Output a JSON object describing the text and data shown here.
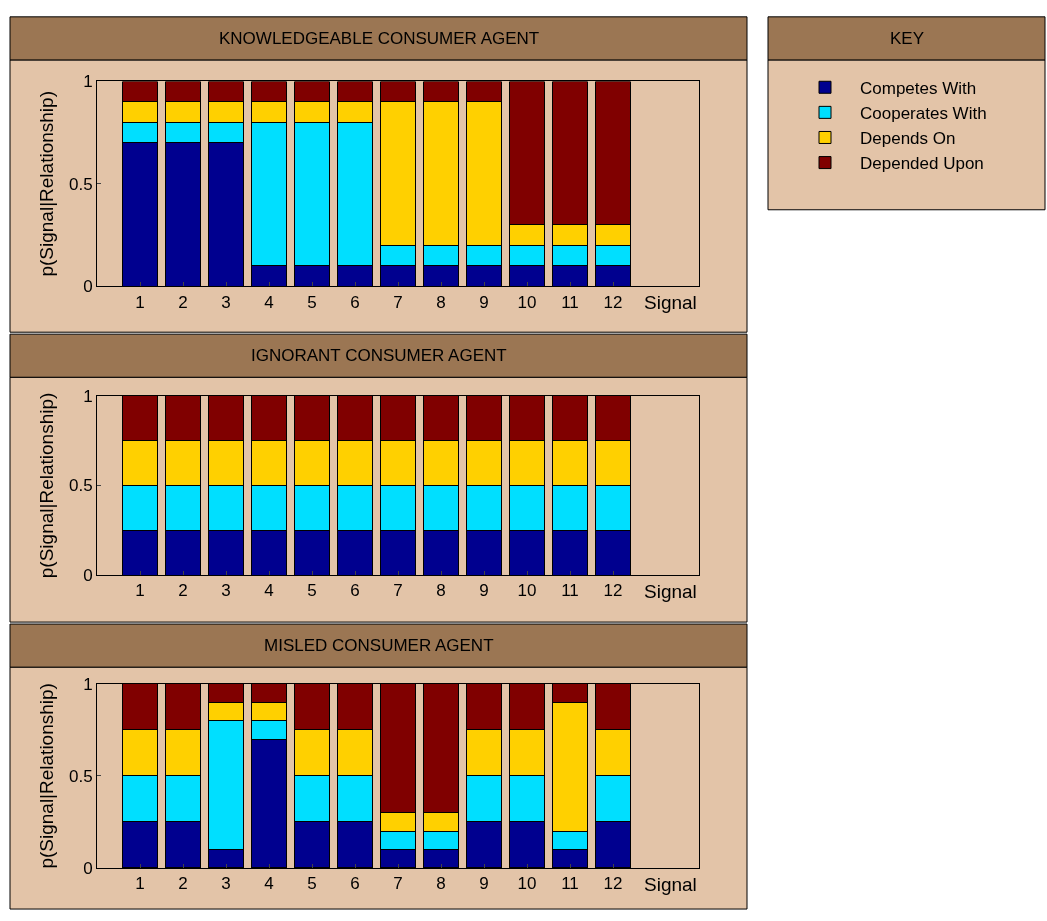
{
  "chart_data": [
    {
      "type": "bar",
      "title": "KNOWLEDGEABLE CONSUMER AGENT",
      "xlabel": "Signal",
      "ylabel": "p(Signal|Relationship)",
      "legend_title": "KEY",
      "legend": "right",
      "stacked": true,
      "x": [
        1,
        2,
        3,
        4,
        5,
        6,
        7,
        8,
        9,
        10,
        11,
        12
      ],
      "xlim": [
        0,
        14
      ],
      "xticks": [
        1,
        2,
        3,
        4,
        5,
        6,
        7,
        8,
        9,
        10,
        11,
        12
      ],
      "ylim": [
        0,
        1
      ],
      "yticks": [
        0,
        0.5,
        1
      ],
      "grid": false,
      "series": [
        {
          "name": "Competes With",
          "color": "#00008f",
          "values": [
            0.7,
            0.7,
            0.7,
            0.1,
            0.1,
            0.1,
            0.1,
            0.1,
            0.1,
            0.1,
            0.1,
            0.1
          ]
        },
        {
          "name": "Cooperates With",
          "color": "#00dfff",
          "values": [
            0.1,
            0.1,
            0.1,
            0.7,
            0.7,
            0.7,
            0.1,
            0.1,
            0.1,
            0.1,
            0.1,
            0.1
          ]
        },
        {
          "name": "Depends On",
          "color": "#ffd000",
          "values": [
            0.1,
            0.1,
            0.1,
            0.1,
            0.1,
            0.1,
            0.7,
            0.7,
            0.7,
            0.1,
            0.1,
            0.1
          ]
        },
        {
          "name": "Depended Upon",
          "color": "#800000",
          "values": [
            0.1,
            0.1,
            0.1,
            0.1,
            0.1,
            0.1,
            0.1,
            0.1,
            0.1,
            0.7,
            0.7,
            0.7
          ]
        }
      ]
    },
    {
      "type": "bar",
      "title": "IGNORANT CONSUMER AGENT",
      "xlabel": "Signal",
      "ylabel": "p(Signal|Relationship)",
      "stacked": true,
      "x": [
        1,
        2,
        3,
        4,
        5,
        6,
        7,
        8,
        9,
        10,
        11,
        12
      ],
      "xlim": [
        0,
        14
      ],
      "xticks": [
        1,
        2,
        3,
        4,
        5,
        6,
        7,
        8,
        9,
        10,
        11,
        12
      ],
      "ylim": [
        0,
        1
      ],
      "yticks": [
        0,
        0.5,
        1
      ],
      "grid": false,
      "series": [
        {
          "color": "#00008f",
          "values": [
            0.25,
            0.25,
            0.25,
            0.25,
            0.25,
            0.25,
            0.25,
            0.25,
            0.25,
            0.25,
            0.25,
            0.25
          ]
        },
        {
          "color": "#00dfff",
          "values": [
            0.25,
            0.25,
            0.25,
            0.25,
            0.25,
            0.25,
            0.25,
            0.25,
            0.25,
            0.25,
            0.25,
            0.25
          ]
        },
        {
          "color": "#ffd000",
          "values": [
            0.25,
            0.25,
            0.25,
            0.25,
            0.25,
            0.25,
            0.25,
            0.25,
            0.25,
            0.25,
            0.25,
            0.25
          ]
        },
        {
          "color": "#800000",
          "values": [
            0.25,
            0.25,
            0.25,
            0.25,
            0.25,
            0.25,
            0.25,
            0.25,
            0.25,
            0.25,
            0.25,
            0.25
          ]
        }
      ]
    },
    {
      "type": "bar",
      "title": "MISLED CONSUMER AGENT",
      "xlabel": "Signal",
      "ylabel": "p(Signal|Relationship)",
      "stacked": true,
      "x": [
        1,
        2,
        3,
        4,
        5,
        6,
        7,
        8,
        9,
        10,
        11,
        12
      ],
      "xlim": [
        0,
        14
      ],
      "xticks": [
        1,
        2,
        3,
        4,
        5,
        6,
        7,
        8,
        9,
        10,
        11,
        12
      ],
      "ylim": [
        0,
        1
      ],
      "yticks": [
        0,
        0.5,
        1
      ],
      "grid": false,
      "series": [
        {
          "color": "#00008f",
          "values": [
            0.25,
            0.25,
            0.1,
            0.7,
            0.25,
            0.25,
            0.1,
            0.1,
            0.25,
            0.25,
            0.1,
            0.25
          ]
        },
        {
          "color": "#00dfff",
          "values": [
            0.25,
            0.25,
            0.7,
            0.1,
            0.25,
            0.25,
            0.1,
            0.1,
            0.25,
            0.25,
            0.1,
            0.25
          ]
        },
        {
          "color": "#ffd000",
          "values": [
            0.25,
            0.25,
            0.1,
            0.1,
            0.25,
            0.25,
            0.1,
            0.1,
            0.25,
            0.25,
            0.7,
            0.25
          ]
        },
        {
          "color": "#800000",
          "values": [
            0.25,
            0.25,
            0.1,
            0.1,
            0.25,
            0.25,
            0.7,
            0.7,
            0.25,
            0.25,
            0.1,
            0.25
          ]
        }
      ]
    }
  ]
}
